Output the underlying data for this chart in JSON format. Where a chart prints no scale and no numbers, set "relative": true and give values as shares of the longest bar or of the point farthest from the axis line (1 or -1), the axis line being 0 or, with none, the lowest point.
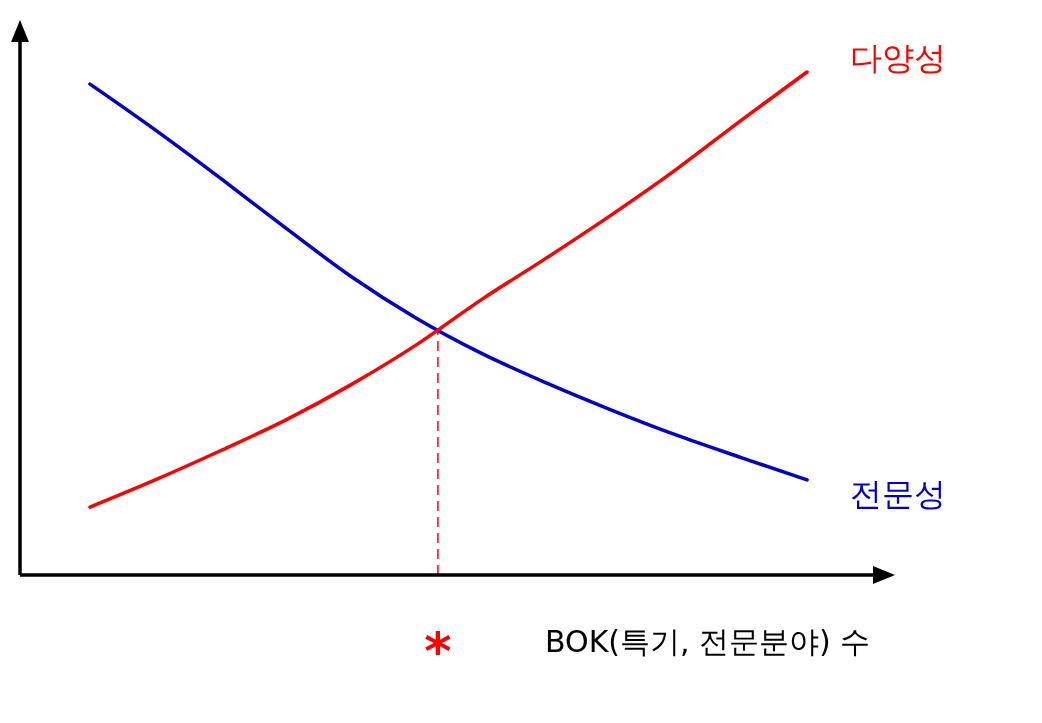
{
  "chart_data": {
    "type": "line",
    "relative": true,
    "xlabel": "BOK(특기, 전문분야) 수",
    "categories": [
      null,
      null,
      null,
      null,
      null,
      null,
      null,
      null,
      null,
      null,
      null,
      null
    ],
    "series": [
      {
        "name": "전문성",
        "color": "#0000cc",
        "values": [
          0.976,
          0.885,
          0.789,
          0.69,
          0.594,
          0.511,
          0.441,
          0.382,
          0.328,
          0.278,
          0.233,
          0.189
        ]
      },
      {
        "name": "다양성",
        "color": "#ff0000",
        "values": [
          0.135,
          0.189,
          0.247,
          0.308,
          0.378,
          0.457,
          0.547,
          0.63,
          0.716,
          0.807,
          0.905,
          1
        ]
      }
    ],
    "annotations": [
      "*"
    ],
    "marker": "none",
    "line_style": "solid"
  }
}
